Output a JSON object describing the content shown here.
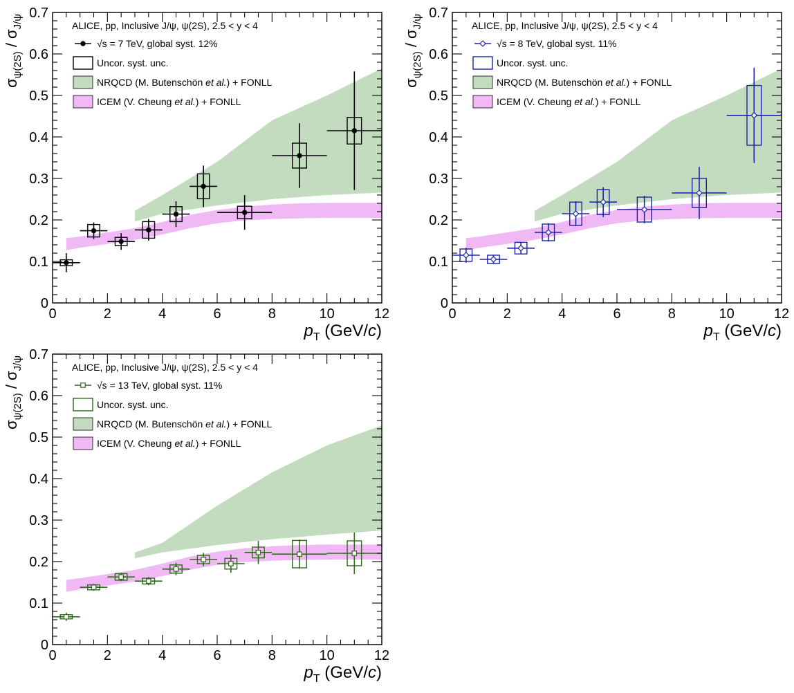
{
  "chart_data": [
    {
      "type": "scatter",
      "panel": "top-left",
      "xlim": [
        0,
        12
      ],
      "ylim": [
        0,
        0.7
      ],
      "x_ticks": [
        "0",
        "2",
        "4",
        "6",
        "8",
        "10",
        "12"
      ],
      "y_ticks": [
        "0",
        "0.1",
        "0.2",
        "0.3",
        "0.4",
        "0.5",
        "0.6",
        "0.7"
      ],
      "xlabel": {
        "main": "p",
        "sub": "T",
        "unit_pre": " (GeV/",
        "unit_var": "c",
        "unit_post": ")"
      },
      "ylabel": {
        "num": "σ",
        "num_sub": "ψ(2S)",
        "sep": " / ",
        "den": "σ",
        "den_sub": "J/ψ"
      },
      "legend": {
        "header": "ALICE, pp, Inclusive J/ψ, ψ(2S), 2.5 < y < 4",
        "data_entry": "√s = 7 TeV, global syst. 12%",
        "syst_entry": "Uncor. syst. unc.",
        "nrqcd_entry": {
          "pre": "NRQCD (M. Butenschön ",
          "ital": "et al.",
          "post": ") + FONLL"
        },
        "icem_entry": {
          "pre": "ICEM (V. Cheung ",
          "ital": "et al.",
          "post": ") + FONLL"
        }
      },
      "marker": "filled-circle",
      "color": "#000000",
      "grid": false,
      "points": [
        {
          "x": 0.5,
          "y": 0.097,
          "xerr": 0.5,
          "stat": 0.023,
          "syst": 0.007
        },
        {
          "x": 1.5,
          "y": 0.174,
          "xerr": 0.5,
          "stat": 0.02,
          "syst": 0.015
        },
        {
          "x": 2.5,
          "y": 0.148,
          "xerr": 0.5,
          "stat": 0.02,
          "syst": 0.01
        },
        {
          "x": 3.5,
          "y": 0.176,
          "xerr": 0.5,
          "stat": 0.026,
          "syst": 0.02
        },
        {
          "x": 4.5,
          "y": 0.214,
          "xerr": 0.5,
          "stat": 0.031,
          "syst": 0.018
        },
        {
          "x": 5.5,
          "y": 0.281,
          "xerr": 0.5,
          "stat": 0.05,
          "syst": 0.03
        },
        {
          "x": 7.0,
          "y": 0.218,
          "xerr": 1.0,
          "stat": 0.042,
          "syst": 0.015
        },
        {
          "x": 9.0,
          "y": 0.355,
          "xerr": 1.0,
          "stat": 0.078,
          "syst": 0.03
        },
        {
          "x": 11.0,
          "y": 0.415,
          "xerr": 1.0,
          "stat": 0.143,
          "syst": 0.032
        }
      ],
      "nrqcd_band": {
        "x": [
          3,
          4,
          6,
          8,
          10,
          12
        ],
        "low": [
          0.196,
          0.215,
          0.235,
          0.25,
          0.26,
          0.266
        ],
        "high": [
          0.222,
          0.26,
          0.34,
          0.44,
          0.5,
          0.565
        ]
      },
      "icem_band": {
        "x": [
          0.5,
          1,
          2,
          3,
          4,
          5,
          6,
          7,
          8,
          9,
          10,
          11,
          12
        ],
        "low": [
          0.127,
          0.133,
          0.142,
          0.152,
          0.165,
          0.18,
          0.192,
          0.199,
          0.202,
          0.204,
          0.205,
          0.205,
          0.205
        ],
        "high": [
          0.156,
          0.16,
          0.17,
          0.18,
          0.195,
          0.212,
          0.224,
          0.232,
          0.237,
          0.24,
          0.241,
          0.241,
          0.241
        ]
      }
    },
    {
      "type": "scatter",
      "panel": "top-right",
      "xlim": [
        0,
        12
      ],
      "ylim": [
        0,
        0.7
      ],
      "x_ticks": [
        "0",
        "2",
        "4",
        "6",
        "8",
        "10",
        "12"
      ],
      "y_ticks": [
        "0",
        "0.1",
        "0.2",
        "0.3",
        "0.4",
        "0.5",
        "0.6",
        "0.7"
      ],
      "xlabel": {
        "main": "p",
        "sub": "T",
        "unit_pre": " (GeV/",
        "unit_var": "c",
        "unit_post": ")"
      },
      "ylabel": {
        "num": "σ",
        "num_sub": "ψ(2S)",
        "sep": " / ",
        "den": "σ",
        "den_sub": "J/ψ"
      },
      "legend": {
        "header": "ALICE, pp, Inclusive J/ψ, ψ(2S), 2.5 < y < 4",
        "data_entry": "√s = 8 TeV, global syst. 11%",
        "syst_entry": "Uncor. syst. unc.",
        "nrqcd_entry": {
          "pre": "NRQCD (M. Butenschön ",
          "ital": "et al.",
          "post": ") + FONLL"
        },
        "icem_entry": {
          "pre": "ICEM (V. Cheung ",
          "ital": "et al.",
          "post": ") + FONLL"
        }
      },
      "marker": "open-diamond",
      "color": "#1a22a8",
      "grid": false,
      "points": [
        {
          "x": 0.5,
          "y": 0.115,
          "xerr": 0.5,
          "stat": 0.018,
          "syst": 0.015
        },
        {
          "x": 1.5,
          "y": 0.105,
          "xerr": 0.5,
          "stat": 0.01,
          "syst": 0.01
        },
        {
          "x": 2.5,
          "y": 0.132,
          "xerr": 0.5,
          "stat": 0.014,
          "syst": 0.014
        },
        {
          "x": 3.5,
          "y": 0.17,
          "xerr": 0.5,
          "stat": 0.022,
          "syst": 0.02
        },
        {
          "x": 4.5,
          "y": 0.215,
          "xerr": 0.5,
          "stat": 0.03,
          "syst": 0.028
        },
        {
          "x": 5.5,
          "y": 0.243,
          "xerr": 0.5,
          "stat": 0.036,
          "syst": 0.03
        },
        {
          "x": 7.0,
          "y": 0.225,
          "xerr": 1.0,
          "stat": 0.033,
          "syst": 0.03
        },
        {
          "x": 9.0,
          "y": 0.265,
          "xerr": 1.0,
          "stat": 0.063,
          "syst": 0.035
        },
        {
          "x": 11.0,
          "y": 0.452,
          "xerr": 1.0,
          "stat": 0.115,
          "syst": 0.072
        }
      ],
      "nrqcd_band": {
        "x": [
          3,
          4,
          6,
          8,
          10,
          12
        ],
        "low": [
          0.196,
          0.215,
          0.235,
          0.25,
          0.26,
          0.266
        ],
        "high": [
          0.222,
          0.26,
          0.34,
          0.44,
          0.5,
          0.565
        ]
      },
      "icem_band": {
        "x": [
          0.5,
          1,
          2,
          3,
          4,
          5,
          6,
          7,
          8,
          9,
          10,
          11,
          12
        ],
        "low": [
          0.127,
          0.133,
          0.142,
          0.152,
          0.165,
          0.18,
          0.192,
          0.199,
          0.202,
          0.204,
          0.205,
          0.205,
          0.205
        ],
        "high": [
          0.156,
          0.16,
          0.17,
          0.18,
          0.195,
          0.212,
          0.224,
          0.232,
          0.237,
          0.24,
          0.241,
          0.241,
          0.241
        ]
      }
    },
    {
      "type": "scatter",
      "panel": "bottom-left",
      "xlim": [
        0,
        12
      ],
      "ylim": [
        0,
        0.7
      ],
      "x_ticks": [
        "0",
        "2",
        "4",
        "6",
        "8",
        "10",
        "12"
      ],
      "y_ticks": [
        "0",
        "0.1",
        "0.2",
        "0.3",
        "0.4",
        "0.5",
        "0.6",
        "0.7"
      ],
      "xlabel": {
        "main": "p",
        "sub": "T",
        "unit_pre": " (GeV/",
        "unit_var": "c",
        "unit_post": ")"
      },
      "ylabel": {
        "num": "σ",
        "num_sub": "ψ(2S)",
        "sep": " / ",
        "den": "σ",
        "den_sub": "J/ψ"
      },
      "legend": {
        "header": "ALICE, pp, Inclusive J/ψ, ψ(2S), 2.5 < y < 4",
        "data_entry": "√s = 13 TeV, global syst. 11%",
        "syst_entry": "Uncor. syst. unc.",
        "nrqcd_entry": {
          "pre": "NRQCD (M. Butenschön ",
          "ital": "et al.",
          "post": ") + FONLL"
        },
        "icem_entry": {
          "pre": "ICEM (V. Cheung ",
          "ital": "et al.",
          "post": ") + FONLL"
        }
      },
      "marker": "open-square",
      "color": "#2e6b1a",
      "grid": false,
      "points": [
        {
          "x": 0.5,
          "y": 0.067,
          "xerr": 0.5,
          "stat": 0.01,
          "syst": 0.005
        },
        {
          "x": 1.5,
          "y": 0.138,
          "xerr": 0.5,
          "stat": 0.008,
          "syst": 0.006
        },
        {
          "x": 2.5,
          "y": 0.163,
          "xerr": 0.5,
          "stat": 0.01,
          "syst": 0.008
        },
        {
          "x": 3.5,
          "y": 0.153,
          "xerr": 0.5,
          "stat": 0.01,
          "syst": 0.007
        },
        {
          "x": 4.5,
          "y": 0.182,
          "xerr": 0.5,
          "stat": 0.015,
          "syst": 0.01
        },
        {
          "x": 5.5,
          "y": 0.205,
          "xerr": 0.5,
          "stat": 0.016,
          "syst": 0.01
        },
        {
          "x": 6.5,
          "y": 0.195,
          "xerr": 0.5,
          "stat": 0.022,
          "syst": 0.013
        },
        {
          "x": 7.5,
          "y": 0.222,
          "xerr": 0.5,
          "stat": 0.028,
          "syst": 0.013
        },
        {
          "x": 9.0,
          "y": 0.218,
          "xerr": 1.0,
          "stat": 0.035,
          "syst": 0.033
        },
        {
          "x": 11.0,
          "y": 0.22,
          "xerr": 1.0,
          "stat": 0.05,
          "syst": 0.03
        }
      ],
      "nrqcd_band": {
        "x": [
          3,
          4,
          6,
          8,
          10,
          12
        ],
        "low": [
          0.208,
          0.222,
          0.24,
          0.254,
          0.265,
          0.275
        ],
        "high": [
          0.222,
          0.245,
          0.335,
          0.415,
          0.48,
          0.528
        ]
      },
      "icem_band": {
        "x": [
          0.5,
          1,
          2,
          3,
          4,
          5,
          6,
          7,
          8,
          9,
          10,
          11,
          12
        ],
        "low": [
          0.127,
          0.133,
          0.142,
          0.152,
          0.165,
          0.18,
          0.192,
          0.199,
          0.202,
          0.204,
          0.205,
          0.205,
          0.205
        ],
        "high": [
          0.156,
          0.16,
          0.17,
          0.18,
          0.195,
          0.212,
          0.224,
          0.232,
          0.237,
          0.24,
          0.241,
          0.241,
          0.241
        ]
      }
    }
  ],
  "colors": {
    "nrqcd_band": "#c3dcbf",
    "icem_band": "#f0b8f5",
    "frame": "#000000"
  }
}
